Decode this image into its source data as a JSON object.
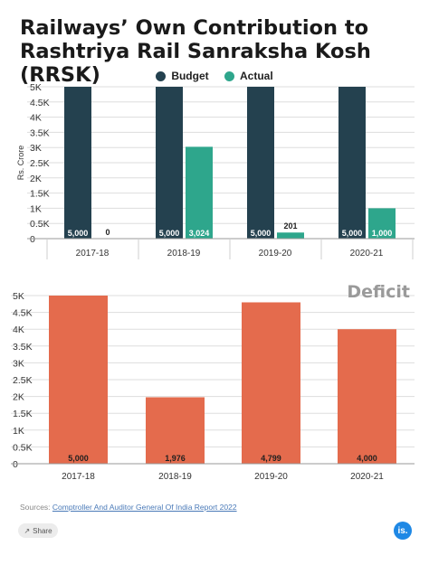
{
  "title": "Railways’ Own Contribution to Rashtriya Rail Sanraksha Kosh (RRSK)",
  "colors": {
    "budget": "#24414f",
    "actual": "#2ea68c",
    "deficit": "#e46b4d",
    "grid": "#dddddd"
  },
  "legend": {
    "budget": "Budget",
    "actual": "Actual"
  },
  "source": {
    "prefix": "Sources:",
    "link": "Comptroller And Auditor General Of India Report 2022"
  },
  "share_label": "Share",
  "logo_text": "is.",
  "chart_data": [
    {
      "type": "bar",
      "title": "",
      "categories": [
        "2017-18",
        "2018-19",
        "2019-20",
        "2020-21"
      ],
      "series": [
        {
          "name": "Budget",
          "values": [
            5000,
            5000,
            5000,
            5000
          ],
          "labels": [
            "5,000",
            "5,000",
            "5,000",
            "5,000"
          ]
        },
        {
          "name": "Actual",
          "values": [
            0,
            3024,
            201,
            1000
          ],
          "labels": [
            "0",
            "3,024",
            "201",
            "1,000"
          ]
        }
      ],
      "ylabel": "Rs. Crore",
      "ylim": [
        0,
        5000
      ],
      "yticks": [
        "0",
        "0.5K",
        "1K",
        "1.5K",
        "2K",
        "2.5K",
        "3K",
        "3.5K",
        "4K",
        "4.5K",
        "5K"
      ],
      "legend": "top-center",
      "grid": true
    },
    {
      "type": "bar",
      "title": "Deficit",
      "categories": [
        "2017-18",
        "2018-19",
        "2019-20",
        "2020-21"
      ],
      "series": [
        {
          "name": "Deficit",
          "values": [
            5000,
            1976,
            4799,
            4000
          ],
          "labels": [
            "5,000",
            "1,976",
            "4,799",
            "4,000"
          ]
        }
      ],
      "ylim": [
        0,
        5000
      ],
      "yticks": [
        "0",
        "0.5K",
        "1K",
        "1.5K",
        "2K",
        "2.5K",
        "3K",
        "3.5K",
        "4K",
        "4.5K",
        "5K"
      ],
      "grid": true
    }
  ]
}
